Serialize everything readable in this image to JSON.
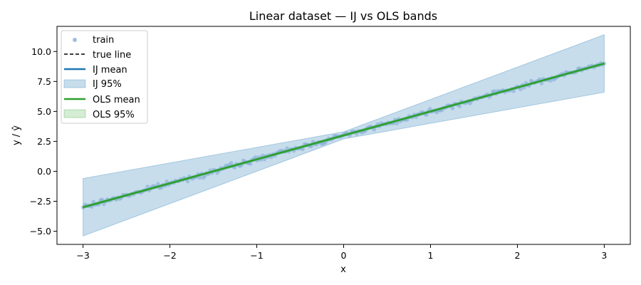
{
  "chart_data": {
    "type": "line",
    "title": "Linear dataset — IJ vs OLS bands",
    "xlabel": "x",
    "ylabel": "y / ŷ",
    "xlim": [
      -3.3,
      3.3
    ],
    "ylim": [
      -6.1,
      12.1
    ],
    "x_ticks": [
      -3,
      -2,
      -1,
      0,
      1,
      2,
      3
    ],
    "x_tick_labels": [
      "−3",
      "−2",
      "−1",
      "0",
      "1",
      "2",
      "3"
    ],
    "y_ticks": [
      -5.0,
      -2.5,
      0.0,
      2.5,
      5.0,
      7.5,
      10.0
    ],
    "y_tick_labels": [
      "−5.0",
      "−2.5",
      "0.0",
      "2.5",
      "5.0",
      "7.5",
      "10.0"
    ],
    "grid": false,
    "legend_position": "top-left",
    "series": [
      {
        "name": "train",
        "kind": "scatter",
        "color": "#7fa9d3",
        "x_range": [
          -3,
          3
        ],
        "slope": 2,
        "intercept": 3
      },
      {
        "name": "true line",
        "kind": "line",
        "style": "dashed",
        "color": "#000000",
        "x": [
          -3,
          3
        ],
        "y": [
          -3,
          9
        ]
      },
      {
        "name": "IJ mean",
        "kind": "line",
        "color": "#1f77b4",
        "x": [
          -3,
          3
        ],
        "y": [
          -3,
          9
        ]
      },
      {
        "name": "IJ 95%",
        "kind": "band",
        "color": "#1f77b4",
        "x": [
          -3,
          0,
          3
        ],
        "lower": [
          -5.4,
          2.7,
          6.6
        ],
        "upper": [
          -0.6,
          3.3,
          11.4
        ]
      },
      {
        "name": "OLS mean",
        "kind": "line",
        "color": "#2ca02c",
        "x": [
          -3,
          3
        ],
        "y": [
          -3,
          9
        ]
      },
      {
        "name": "OLS 95%",
        "kind": "band",
        "color": "#2ca02c",
        "x": [
          -3,
          3
        ],
        "lower": [
          -3.1,
          8.9
        ],
        "upper": [
          -2.9,
          9.1
        ]
      }
    ]
  }
}
